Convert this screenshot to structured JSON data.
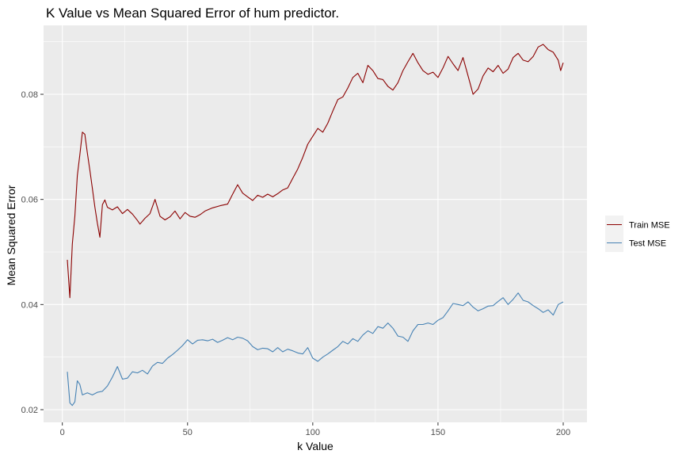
{
  "chart_data": {
    "type": "line",
    "title": "K Value vs Mean Squared Error of hum predictor.",
    "xlabel": "k Value",
    "ylabel": "Mean Squared Error",
    "xlim": [
      2,
      200
    ],
    "ylim": [
      0.0195,
      0.0902
    ],
    "xticks": [
      0,
      50,
      100,
      150,
      200
    ],
    "xtick_labels": [
      "0",
      "50",
      "100",
      "150",
      "200"
    ],
    "yticks": [
      0.02,
      0.04,
      0.06,
      0.08
    ],
    "ytick_labels": [
      "0.02",
      "0.04",
      "0.06",
      "0.08"
    ],
    "grid": true,
    "legend_position": "right",
    "colors": {
      "panel": "#ebebeb",
      "grid": "#ffffff",
      "train": "#8b0000",
      "test": "#4682b4"
    },
    "series": [
      {
        "name": "Train MSE",
        "key": "train",
        "points": [
          [
            2,
            0.0485
          ],
          [
            3,
            0.0413
          ],
          [
            4,
            0.0515
          ],
          [
            5,
            0.0568
          ],
          [
            6,
            0.0645
          ],
          [
            7,
            0.0685
          ],
          [
            8,
            0.0728
          ],
          [
            9,
            0.0724
          ],
          [
            10,
            0.0688
          ],
          [
            11,
            0.0655
          ],
          [
            12,
            0.0621
          ],
          [
            13,
            0.0585
          ],
          [
            14,
            0.0555
          ],
          [
            15,
            0.0528
          ],
          [
            16,
            0.059
          ],
          [
            17,
            0.0599
          ],
          [
            18,
            0.0585
          ],
          [
            20,
            0.058
          ],
          [
            22,
            0.0586
          ],
          [
            24,
            0.0573
          ],
          [
            26,
            0.0581
          ],
          [
            28,
            0.0572
          ],
          [
            30,
            0.056
          ],
          [
            31,
            0.0553
          ],
          [
            33,
            0.0564
          ],
          [
            35,
            0.0573
          ],
          [
            37,
            0.06
          ],
          [
            39,
            0.0568
          ],
          [
            41,
            0.0561
          ],
          [
            43,
            0.0567
          ],
          [
            45,
            0.0578
          ],
          [
            47,
            0.0563
          ],
          [
            49,
            0.0575
          ],
          [
            51,
            0.0568
          ],
          [
            53,
            0.0566
          ],
          [
            55,
            0.0571
          ],
          [
            57,
            0.0578
          ],
          [
            60,
            0.0584
          ],
          [
            63,
            0.0588
          ],
          [
            66,
            0.0591
          ],
          [
            68,
            0.061
          ],
          [
            70,
            0.0628
          ],
          [
            72,
            0.0612
          ],
          [
            74,
            0.0605
          ],
          [
            76,
            0.0598
          ],
          [
            78,
            0.0608
          ],
          [
            80,
            0.0604
          ],
          [
            82,
            0.061
          ],
          [
            84,
            0.0605
          ],
          [
            86,
            0.0611
          ],
          [
            88,
            0.0618
          ],
          [
            90,
            0.0622
          ],
          [
            92,
            0.064
          ],
          [
            94,
            0.0658
          ],
          [
            96,
            0.068
          ],
          [
            98,
            0.0705
          ],
          [
            100,
            0.072
          ],
          [
            102,
            0.0735
          ],
          [
            104,
            0.0728
          ],
          [
            106,
            0.0745
          ],
          [
            108,
            0.0768
          ],
          [
            110,
            0.079
          ],
          [
            112,
            0.0795
          ],
          [
            114,
            0.0812
          ],
          [
            116,
            0.0832
          ],
          [
            118,
            0.084
          ],
          [
            120,
            0.0822
          ],
          [
            122,
            0.0855
          ],
          [
            124,
            0.0845
          ],
          [
            126,
            0.083
          ],
          [
            128,
            0.0828
          ],
          [
            130,
            0.0815
          ],
          [
            132,
            0.0808
          ],
          [
            134,
            0.0822
          ],
          [
            136,
            0.0845
          ],
          [
            138,
            0.0862
          ],
          [
            140,
            0.0878
          ],
          [
            142,
            0.086
          ],
          [
            144,
            0.0845
          ],
          [
            146,
            0.0838
          ],
          [
            148,
            0.0842
          ],
          [
            150,
            0.0832
          ],
          [
            152,
            0.085
          ],
          [
            154,
            0.0872
          ],
          [
            156,
            0.0858
          ],
          [
            158,
            0.0845
          ],
          [
            160,
            0.087
          ],
          [
            162,
            0.0835
          ],
          [
            164,
            0.08
          ],
          [
            166,
            0.081
          ],
          [
            168,
            0.0835
          ],
          [
            170,
            0.085
          ],
          [
            172,
            0.0843
          ],
          [
            174,
            0.0855
          ],
          [
            176,
            0.084
          ],
          [
            178,
            0.0848
          ],
          [
            180,
            0.087
          ],
          [
            182,
            0.0878
          ],
          [
            184,
            0.0865
          ],
          [
            186,
            0.0862
          ],
          [
            188,
            0.0872
          ],
          [
            190,
            0.089
          ],
          [
            192,
            0.0895
          ],
          [
            194,
            0.0885
          ],
          [
            196,
            0.088
          ],
          [
            198,
            0.0865
          ],
          [
            199,
            0.0845
          ],
          [
            200,
            0.086
          ]
        ]
      },
      {
        "name": "Test MSE",
        "key": "test",
        "points": [
          [
            2,
            0.0272
          ],
          [
            3,
            0.0213
          ],
          [
            4,
            0.0208
          ],
          [
            5,
            0.0215
          ],
          [
            6,
            0.0255
          ],
          [
            7,
            0.0248
          ],
          [
            8,
            0.0228
          ],
          [
            10,
            0.0232
          ],
          [
            12,
            0.0228
          ],
          [
            14,
            0.0233
          ],
          [
            16,
            0.0235
          ],
          [
            18,
            0.0245
          ],
          [
            20,
            0.0262
          ],
          [
            22,
            0.0282
          ],
          [
            24,
            0.0258
          ],
          [
            26,
            0.026
          ],
          [
            28,
            0.0272
          ],
          [
            30,
            0.027
          ],
          [
            32,
            0.0275
          ],
          [
            34,
            0.0268
          ],
          [
            36,
            0.0283
          ],
          [
            38,
            0.029
          ],
          [
            40,
            0.0288
          ],
          [
            42,
            0.0298
          ],
          [
            44,
            0.0305
          ],
          [
            46,
            0.0313
          ],
          [
            48,
            0.0322
          ],
          [
            50,
            0.0333
          ],
          [
            52,
            0.0325
          ],
          [
            54,
            0.0332
          ],
          [
            56,
            0.0333
          ],
          [
            58,
            0.0331
          ],
          [
            60,
            0.0334
          ],
          [
            62,
            0.0328
          ],
          [
            64,
            0.0332
          ],
          [
            66,
            0.0337
          ],
          [
            68,
            0.0333
          ],
          [
            70,
            0.0338
          ],
          [
            72,
            0.0336
          ],
          [
            74,
            0.0331
          ],
          [
            76,
            0.032
          ],
          [
            78,
            0.0314
          ],
          [
            80,
            0.0317
          ],
          [
            82,
            0.0316
          ],
          [
            84,
            0.031
          ],
          [
            86,
            0.0318
          ],
          [
            88,
            0.031
          ],
          [
            90,
            0.0315
          ],
          [
            92,
            0.0312
          ],
          [
            94,
            0.0308
          ],
          [
            96,
            0.0306
          ],
          [
            98,
            0.0318
          ],
          [
            100,
            0.0298
          ],
          [
            102,
            0.0292
          ],
          [
            104,
            0.03
          ],
          [
            106,
            0.0306
          ],
          [
            108,
            0.0313
          ],
          [
            110,
            0.032
          ],
          [
            112,
            0.033
          ],
          [
            114,
            0.0325
          ],
          [
            116,
            0.0335
          ],
          [
            118,
            0.033
          ],
          [
            120,
            0.0342
          ],
          [
            122,
            0.035
          ],
          [
            124,
            0.0345
          ],
          [
            126,
            0.0358
          ],
          [
            128,
            0.0355
          ],
          [
            130,
            0.0365
          ],
          [
            132,
            0.0355
          ],
          [
            134,
            0.034
          ],
          [
            136,
            0.0338
          ],
          [
            138,
            0.033
          ],
          [
            140,
            0.035
          ],
          [
            142,
            0.0362
          ],
          [
            144,
            0.0362
          ],
          [
            146,
            0.0365
          ],
          [
            148,
            0.0362
          ],
          [
            150,
            0.037
          ],
          [
            152,
            0.0375
          ],
          [
            154,
            0.0388
          ],
          [
            156,
            0.0402
          ],
          [
            158,
            0.04
          ],
          [
            160,
            0.0398
          ],
          [
            162,
            0.0405
          ],
          [
            164,
            0.0395
          ],
          [
            166,
            0.0388
          ],
          [
            168,
            0.0392
          ],
          [
            170,
            0.0397
          ],
          [
            172,
            0.0398
          ],
          [
            174,
            0.0406
          ],
          [
            176,
            0.0413
          ],
          [
            178,
            0.04
          ],
          [
            180,
            0.041
          ],
          [
            182,
            0.0422
          ],
          [
            184,
            0.0408
          ],
          [
            186,
            0.0405
          ],
          [
            188,
            0.0398
          ],
          [
            190,
            0.0392
          ],
          [
            192,
            0.0385
          ],
          [
            194,
            0.039
          ],
          [
            196,
            0.038
          ],
          [
            198,
            0.04
          ],
          [
            200,
            0.0405
          ]
        ]
      }
    ]
  }
}
